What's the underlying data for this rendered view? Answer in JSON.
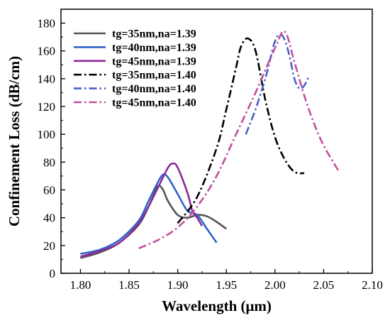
{
  "chart_data": {
    "type": "line",
    "title": "",
    "xlabel": "Wavelength (μm)",
    "ylabel": "Confinement Loss (dB/cm)",
    "xlim": [
      1.78,
      2.1
    ],
    "ylim": [
      0,
      190
    ],
    "xticks": [
      "1.80",
      "1.85",
      "1.90",
      "1.95",
      "2.00",
      "2.05",
      "2.10"
    ],
    "yticks": [
      "0",
      "20",
      "40",
      "60",
      "80",
      "100",
      "120",
      "140",
      "160",
      "180"
    ],
    "legend_position": "top-left",
    "grid": false,
    "series": [
      {
        "name": "tg=35nm,na=1.39",
        "color": "#555555",
        "dash": "solid",
        "x": [
          1.8,
          1.82,
          1.84,
          1.86,
          1.87,
          1.875,
          1.88,
          1.885,
          1.89,
          1.9,
          1.91,
          1.92,
          1.93,
          1.94,
          1.95
        ],
        "y": [
          11,
          15,
          22,
          35,
          48,
          56,
          63,
          60,
          52,
          42,
          40,
          42,
          41,
          37,
          32
        ]
      },
      {
        "name": "tg=40nm,na=1.39",
        "color": "#2e63c9",
        "dash": "solid",
        "x": [
          1.8,
          1.82,
          1.84,
          1.86,
          1.87,
          1.88,
          1.885,
          1.89,
          1.9,
          1.91,
          1.92,
          1.93,
          1.94
        ],
        "y": [
          14,
          17,
          24,
          38,
          52,
          66,
          71,
          69,
          57,
          45,
          42,
          32,
          22
        ]
      },
      {
        "name": "tg=45nm,na=1.39",
        "color": "#8e2a96",
        "dash": "solid",
        "x": [
          1.8,
          1.82,
          1.84,
          1.86,
          1.87,
          1.88,
          1.89,
          1.895,
          1.9,
          1.91,
          1.915,
          1.92,
          1.925
        ],
        "y": [
          12,
          16,
          22,
          36,
          48,
          62,
          76,
          79,
          76,
          58,
          45,
          40,
          34
        ]
      },
      {
        "name": "tg=35nm,na=1.40",
        "color": "#000000",
        "dash": "dashdot",
        "x": [
          1.9,
          1.92,
          1.94,
          1.95,
          1.96,
          1.965,
          1.972,
          1.98,
          1.99,
          2.0,
          2.01,
          2.02,
          2.03
        ],
        "y": [
          36,
          55,
          90,
          118,
          148,
          163,
          169,
          160,
          125,
          98,
          82,
          73,
          72
        ]
      },
      {
        "name": "tg=40nm,na=1.40",
        "color": "#4a5fc9",
        "dash": "dashdot",
        "x": [
          1.97,
          1.98,
          1.99,
          1.995,
          2.0,
          2.005,
          2.01,
          2.015,
          2.02,
          2.025,
          2.03,
          2.035
        ],
        "y": [
          100,
          118,
          140,
          154,
          167,
          172,
          168,
          156,
          140,
          133,
          135,
          142
        ]
      },
      {
        "name": "tg=45nm,na=1.40",
        "color": "#c24f9c",
        "dash": "dashdot",
        "x": [
          1.86,
          1.88,
          1.9,
          1.92,
          1.94,
          1.96,
          1.98,
          2.0,
          2.01,
          2.02,
          2.03,
          2.04,
          2.05,
          2.065
        ],
        "y": [
          18,
          24,
          33,
          48,
          70,
          100,
          130,
          162,
          174,
          152,
          128,
          108,
          92,
          74
        ]
      }
    ]
  }
}
